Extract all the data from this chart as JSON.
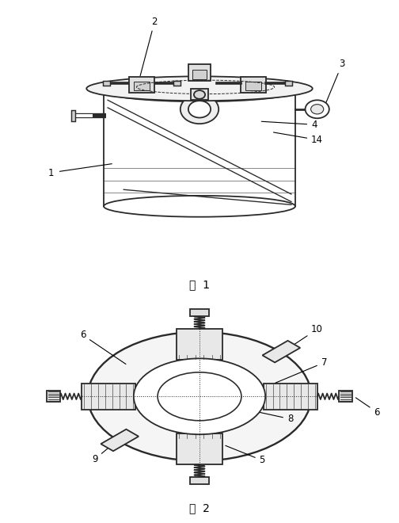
{
  "line_color": "#2a2a2a",
  "line_width": 1.3,
  "bg_color": "#ffffff",
  "fig1_caption": "图 1",
  "fig2_caption": "图 2"
}
